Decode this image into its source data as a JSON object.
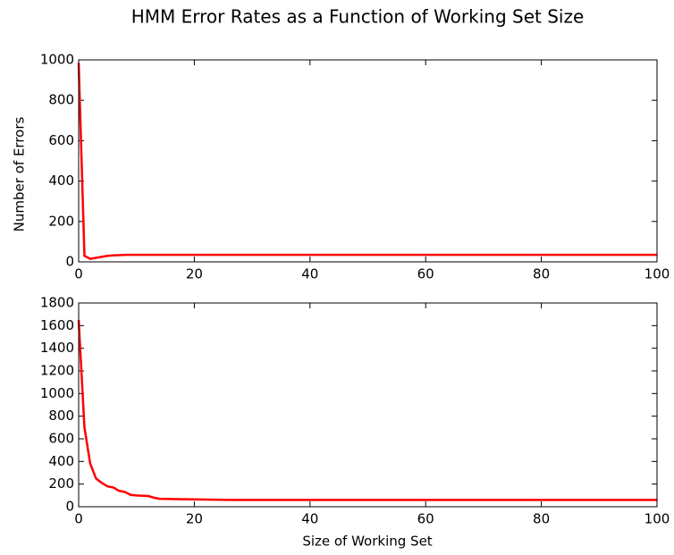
{
  "chart_data": [
    {
      "type": "line",
      "title": "HMM Error Rates as a Function of Working Set Size",
      "ylabel": "Number of Errors",
      "x": [
        0,
        1,
        2,
        3,
        4,
        5,
        6,
        7,
        8,
        10,
        20,
        30,
        40,
        50,
        60,
        70,
        80,
        90,
        100
      ],
      "values": [
        985,
        30,
        15,
        20,
        25,
        30,
        32,
        33,
        35,
        35,
        35,
        35,
        35,
        35,
        35,
        35,
        35,
        35,
        35
      ],
      "color": "#ff0000",
      "xlim": [
        0,
        100
      ],
      "xticks": [
        0,
        20,
        40,
        60,
        80,
        100
      ],
      "ylim": [
        0,
        1000
      ],
      "yticks": [
        0,
        200,
        400,
        600,
        800,
        1000
      ]
    },
    {
      "type": "line",
      "xlabel": "Size of Working Set",
      "x": [
        0,
        1,
        2,
        3,
        4,
        5,
        6,
        7,
        8,
        9,
        10,
        12,
        13,
        14,
        16,
        20,
        26,
        40,
        60,
        80,
        100
      ],
      "values": [
        1650,
        700,
        380,
        250,
        210,
        180,
        170,
        140,
        130,
        105,
        100,
        95,
        80,
        70,
        68,
        65,
        60,
        60,
        60,
        60,
        60
      ],
      "color": "#ff0000",
      "xlim": [
        0,
        100
      ],
      "xticks": [
        0,
        20,
        40,
        60,
        80,
        100
      ],
      "ylim": [
        0,
        1800
      ],
      "yticks": [
        0,
        200,
        400,
        600,
        800,
        1000,
        1200,
        1400,
        1600,
        1800
      ]
    }
  ]
}
